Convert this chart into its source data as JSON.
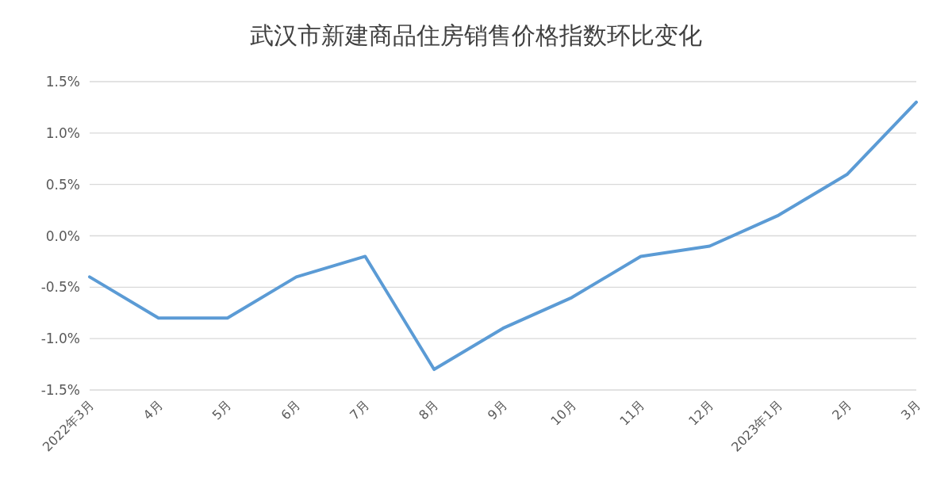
{
  "chart_data": {
    "type": "line",
    "title": "武汉市新建商品住房销售价格指数环比变化",
    "categories": [
      "2022年3月",
      "4月",
      "5月",
      "6月",
      "7月",
      "8月",
      "9月",
      "10月",
      "11月",
      "12月",
      "2023年1月",
      "2月",
      "3月"
    ],
    "series": [
      {
        "color": "#5b9bd5",
        "values": [
          -0.4,
          -0.8,
          -0.8,
          -0.4,
          -0.2,
          -1.3,
          -0.9,
          -0.6,
          -0.2,
          -0.1,
          0.2,
          0.6,
          1.3
        ]
      }
    ],
    "ylim": [
      -1.5,
      1.5
    ],
    "yticks": [
      {
        "value": -1.5,
        "label": "-1.5%"
      },
      {
        "value": -1.0,
        "label": "-1.0%"
      },
      {
        "value": -0.5,
        "label": "-0.5%"
      },
      {
        "value": 0,
        "label": "0.0%"
      },
      {
        "value": 0.5,
        "label": "0.5%"
      },
      {
        "value": 1.0,
        "label": "1.0%"
      },
      {
        "value": 1.5,
        "label": "1.5%"
      }
    ],
    "grid": "y",
    "marker": "none",
    "line_style": "solid"
  }
}
